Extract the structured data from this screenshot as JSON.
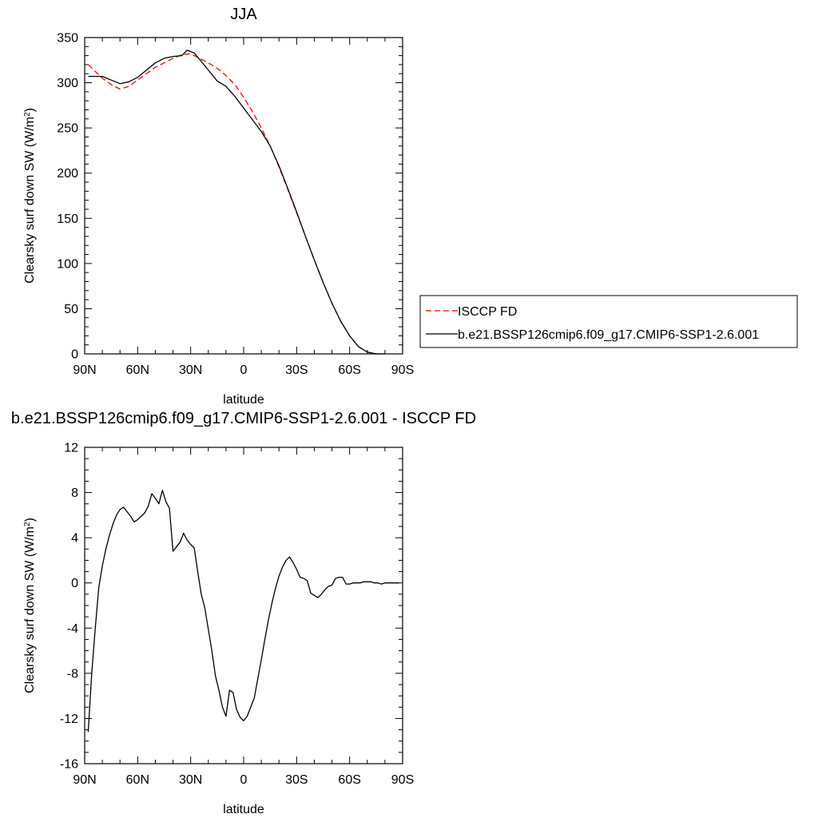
{
  "chart_data": [
    {
      "type": "line",
      "title": "JJA",
      "xlabel": "latitude",
      "ylabel": "Clearsky surf down SW (W/m",
      "ylabel_sup": "2",
      "ylabel_end": ")",
      "xlim": [
        -90,
        90
      ],
      "ylim": [
        0,
        350
      ],
      "x_ticks": [
        -90,
        -60,
        -30,
        0,
        30,
        60,
        90
      ],
      "x_tick_labels": [
        "90N",
        "60N",
        "30N",
        "0",
        "30S",
        "60S",
        "90S"
      ],
      "y_ticks": [
        0,
        50,
        100,
        150,
        200,
        250,
        300,
        350
      ],
      "y_tick_labels": [
        "0",
        "50",
        "100",
        "150",
        "200",
        "250",
        "300",
        "350"
      ],
      "x_minor_step": 10,
      "y_minor_step": 10,
      "legend_position": "right",
      "series": [
        {
          "name": "ISCCP FD",
          "color": "#ff0000",
          "dash": "dashed",
          "x": [
            -88,
            -80,
            -75,
            -70,
            -65,
            -60,
            -55,
            -50,
            -45,
            -40,
            -35,
            -30,
            -25,
            -20,
            -15,
            -10,
            -5,
            0,
            5,
            10,
            15,
            20,
            25,
            30,
            35,
            40,
            45,
            50,
            55,
            60,
            65,
            70,
            75,
            80
          ],
          "y": [
            320,
            305,
            298,
            293,
            296,
            303,
            310,
            317,
            322,
            327,
            331,
            332,
            327,
            322,
            316,
            308,
            298,
            284,
            268,
            250,
            230,
            207,
            182,
            156,
            130,
            104,
            79,
            56,
            36,
            20,
            8,
            2,
            0,
            0
          ]
        },
        {
          "name": "b.e21.BSSP126cmip6.f09_g17.CMIP6-SSP1-2.6.001",
          "color": "#000000",
          "dash": "solid",
          "x": [
            -88,
            -80,
            -75,
            -70,
            -65,
            -60,
            -55,
            -50,
            -45,
            -40,
            -35,
            -32,
            -28,
            -25,
            -20,
            -15,
            -10,
            -5,
            0,
            5,
            10,
            15,
            20,
            25,
            30,
            35,
            40,
            45,
            50,
            55,
            60,
            65,
            70,
            75,
            80
          ],
          "y": [
            307,
            307,
            303,
            299,
            301,
            306,
            314,
            322,
            327,
            329,
            330,
            336,
            333,
            326,
            314,
            302,
            296,
            285,
            272,
            259,
            246,
            230,
            208,
            183,
            157,
            130,
            104,
            79,
            56,
            36,
            20,
            8,
            2,
            0,
            0
          ]
        }
      ]
    },
    {
      "type": "line",
      "title": "b.e21.BSSP126cmip6.f09_g17.CMIP6-SSP1-2.6.001 - ISCCP FD",
      "xlabel": "latitude",
      "ylabel": "Clearsky surf down SW (W/m",
      "ylabel_sup": "2",
      "ylabel_end": ")",
      "xlim": [
        -90,
        90
      ],
      "ylim": [
        -16,
        12
      ],
      "x_ticks": [
        -90,
        -60,
        -30,
        0,
        30,
        60,
        90
      ],
      "x_tick_labels": [
        "90N",
        "60N",
        "30N",
        "0",
        "30S",
        "60S",
        "90S"
      ],
      "y_ticks": [
        -16,
        -12,
        -8,
        -4,
        0,
        4,
        8,
        12
      ],
      "y_tick_labels": [
        "-16",
        "-12",
        "-8",
        "-4",
        "0",
        "4",
        "8",
        "12"
      ],
      "x_minor_step": 10,
      "y_minor_step": 1,
      "series": [
        {
          "color": "#000000",
          "dash": "solid",
          "x": [
            -88,
            -86,
            -84,
            -82,
            -80,
            -78,
            -76,
            -74,
            -72,
            -70,
            -68,
            -66,
            -64,
            -62,
            -60,
            -58,
            -56,
            -54,
            -52,
            -50,
            -48,
            -46,
            -44,
            -42,
            -40,
            -38,
            -36,
            -34,
            -32,
            -30,
            -28,
            -26,
            -24,
            -22,
            -20,
            -18,
            -16,
            -14,
            -12,
            -10,
            -8,
            -6,
            -4,
            -2,
            0,
            2,
            4,
            6,
            8,
            10,
            12,
            14,
            16,
            18,
            20,
            22,
            24,
            26,
            28,
            30,
            32,
            34,
            36,
            38,
            40,
            42,
            44,
            46,
            48,
            50,
            52,
            54,
            56,
            58,
            60,
            62,
            64,
            66,
            68,
            70,
            72,
            74,
            76,
            78,
            80,
            82,
            84,
            86,
            88
          ],
          "y": [
            -13.2,
            -8.0,
            -4.0,
            -0.4,
            1.5,
            3.0,
            4.2,
            5.2,
            6.0,
            6.5,
            6.7,
            6.3,
            5.9,
            5.4,
            5.6,
            5.9,
            6.2,
            6.8,
            7.9,
            7.5,
            7.0,
            8.2,
            7.2,
            6.6,
            2.8,
            3.2,
            3.6,
            4.4,
            3.8,
            3.4,
            3.1,
            1.0,
            -1.0,
            -2.2,
            -4.1,
            -6.0,
            -8.2,
            -9.5,
            -11.0,
            -11.8,
            -9.5,
            -9.7,
            -11.2,
            -11.9,
            -12.2,
            -11.8,
            -11.0,
            -10.2,
            -8.5,
            -6.8,
            -5.0,
            -3.3,
            -1.8,
            -0.5,
            0.6,
            1.4,
            2.0,
            2.3,
            1.8,
            1.2,
            0.5,
            0.4,
            0.2,
            -0.9,
            -1.1,
            -1.3,
            -1.0,
            -0.6,
            -0.3,
            -0.2,
            0.4,
            0.5,
            0.5,
            -0.1,
            -0.1,
            0.0,
            0.0,
            0.0,
            0.1,
            0.1,
            0.1,
            0.0,
            0.0,
            -0.1,
            0.0,
            0.0,
            0.0,
            0.0,
            0.0
          ]
        }
      ]
    }
  ]
}
